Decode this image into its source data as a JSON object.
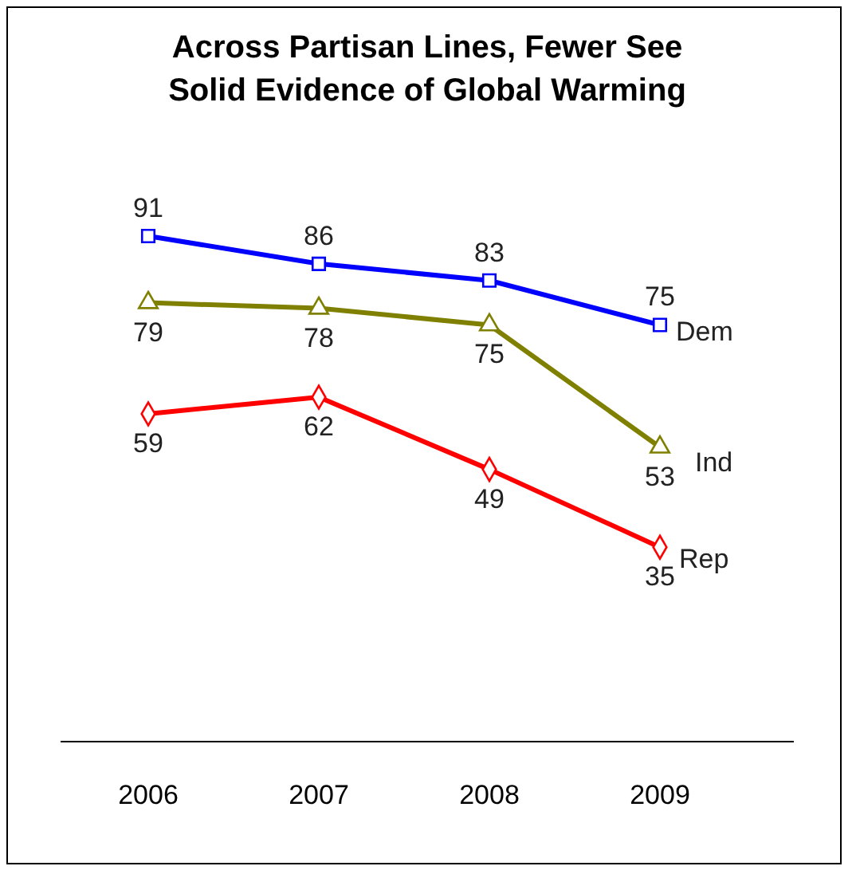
{
  "chart_data": {
    "type": "line",
    "title": "Across Partisan Lines, Fewer See\nSolid Evidence of Global Warming",
    "categories": [
      "2006",
      "2007",
      "2008",
      "2009"
    ],
    "tick_labels": "x",
    "data_labels": true,
    "line_style": "solid",
    "series": [
      {
        "name": "Dem",
        "color": "#0000ff",
        "marker": "square",
        "values": [
          91,
          86,
          83,
          75
        ]
      },
      {
        "name": "Ind",
        "color": "#808000",
        "marker": "triangle",
        "values": [
          79,
          78,
          75,
          53
        ]
      },
      {
        "name": "Rep",
        "color": "#ff0000",
        "marker": "diamond",
        "values": [
          59,
          62,
          49,
          35
        ]
      }
    ]
  }
}
